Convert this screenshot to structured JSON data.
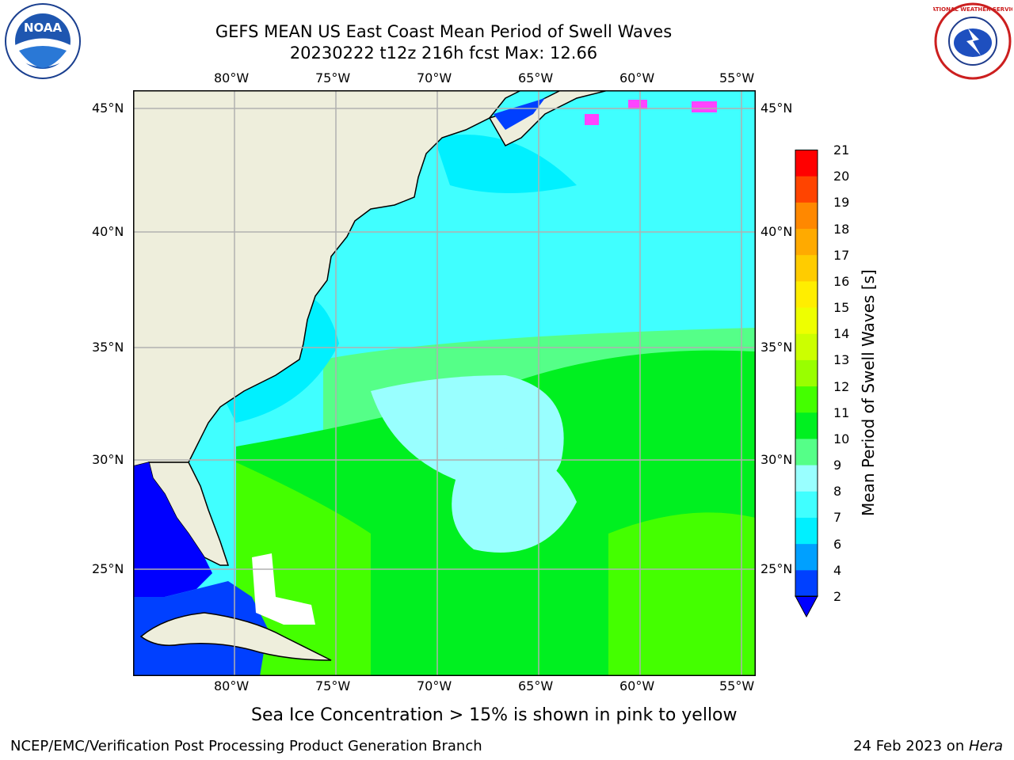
{
  "header": {
    "title_line1": "GEFS MEAN US East Coast Mean Period of Swell Waves",
    "title_line2": "20230222 t12z 216h fcst   Max: 12.66"
  },
  "logos": {
    "left": {
      "name": "noaa-logo",
      "text": "NOAA"
    },
    "right": {
      "name": "nws-logo",
      "text": "NATIONAL WEATHER SERVICE"
    }
  },
  "map": {
    "lon_labels": [
      "80°W",
      "75°W",
      "70°W",
      "65°W",
      "60°W",
      "55°W"
    ],
    "lat_labels": [
      "45°N",
      "40°N",
      "35°N",
      "30°N",
      "25°N"
    ],
    "land_color": "#eeeedc",
    "gridline_color": "#b0b0b0"
  },
  "colorbar": {
    "title": "Mean Period of Swell Waves [s]",
    "ticks": [
      "2",
      "4",
      "6",
      "7",
      "8",
      "9",
      "10",
      "11",
      "12",
      "13",
      "14",
      "15",
      "16",
      "17",
      "18",
      "19",
      "20",
      "21"
    ],
    "colors": [
      "#0040ff",
      "#00a0ff",
      "#00f0ff",
      "#40ffff",
      "#99ffff",
      "#55ff88",
      "#00f020",
      "#44ff00",
      "#99ff00",
      "#ccff00",
      "#eeff00",
      "#ffee00",
      "#ffcc00",
      "#ffaa00",
      "#ff8800",
      "#ff4400",
      "#ff0000"
    ],
    "under_color": "#0000ff"
  },
  "note": "Sea Ice Concentration > 15% is shown in pink to yellow",
  "footer": {
    "left": "NCEP/EMC/Verification Post Processing Product Generation Branch",
    "right_prefix": "24 Feb 2023 on ",
    "right_host": "Hera"
  }
}
